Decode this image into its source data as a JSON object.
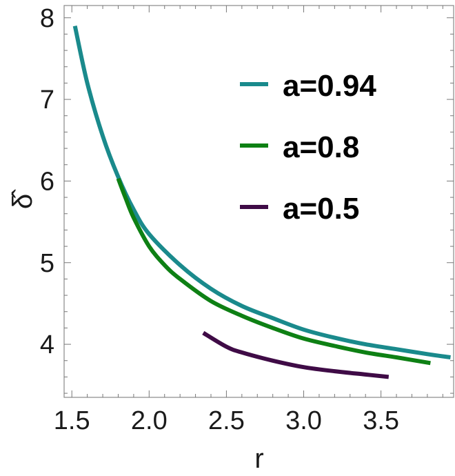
{
  "chart_data": {
    "type": "line",
    "xlabel": "r",
    "ylabel": "δ̂",
    "xlim": [
      1.45,
      3.97
    ],
    "ylim": [
      3.35,
      8.15
    ],
    "x_ticks": [
      "1.5",
      "2.0",
      "2.5",
      "3.0",
      "3.5"
    ],
    "y_ticks": [
      "4",
      "5",
      "6",
      "7",
      "8"
    ],
    "grid": false,
    "legend_position": "upper-right",
    "series": [
      {
        "name": "a=0.94",
        "color": "#1a8a8c",
        "x": [
          1.52,
          1.6,
          1.7,
          1.8,
          1.9,
          2.0,
          2.2,
          2.4,
          2.6,
          2.8,
          3.0,
          3.2,
          3.4,
          3.6,
          3.8,
          3.95
        ],
        "y": [
          7.9,
          7.2,
          6.55,
          6.05,
          5.65,
          5.35,
          4.97,
          4.68,
          4.47,
          4.32,
          4.18,
          4.08,
          4.0,
          3.94,
          3.88,
          3.84
        ]
      },
      {
        "name": "a=0.8",
        "color": "#0e8014",
        "x": [
          1.8,
          1.85,
          1.9,
          2.0,
          2.1,
          2.2,
          2.4,
          2.6,
          2.8,
          3.0,
          3.2,
          3.4,
          3.6,
          3.82
        ],
        "y": [
          6.03,
          5.78,
          5.55,
          5.2,
          4.97,
          4.8,
          4.53,
          4.35,
          4.2,
          4.07,
          3.98,
          3.9,
          3.84,
          3.77
        ]
      },
      {
        "name": "a=0.5",
        "color": "#3f0b46",
        "x": [
          2.35,
          2.5,
          2.6,
          2.8,
          3.0,
          3.2,
          3.4,
          3.55
        ],
        "y": [
          4.14,
          3.97,
          3.9,
          3.8,
          3.72,
          3.67,
          3.63,
          3.6
        ]
      }
    ]
  }
}
